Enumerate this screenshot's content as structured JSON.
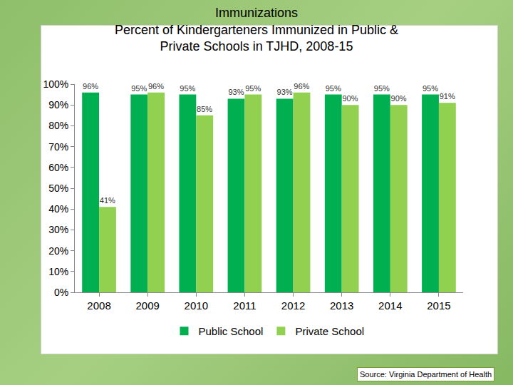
{
  "chart_data": {
    "type": "bar",
    "title": "Immunizations\nPercent of Kindergarteners Immunized in Public &\nPrivate Schools in TJHD, 2008-15",
    "categories": [
      "2008",
      "2009",
      "2010",
      "2011",
      "2012",
      "2013",
      "2014",
      "2015"
    ],
    "series": [
      {
        "name": "Public School",
        "color": "#00b050",
        "values": [
          96,
          95,
          95,
          93,
          93,
          95,
          95,
          95
        ],
        "value_labels": [
          "96%",
          "95%",
          "95%",
          "93%",
          "93%",
          "95%",
          "95%",
          "95%"
        ]
      },
      {
        "name": "Private School",
        "color": "#92d050",
        "values": [
          41,
          96,
          85,
          95,
          96,
          90,
          90,
          91
        ],
        "value_labels": [
          "41%",
          "96%",
          "85%",
          "95%",
          "96%",
          "90%",
          "90%",
          "91%"
        ]
      }
    ],
    "ylim": [
      0,
      100
    ],
    "yticks": [
      {
        "value": 0,
        "label": "0%"
      },
      {
        "value": 10,
        "label": "10%"
      },
      {
        "value": 20,
        "label": "20%"
      },
      {
        "value": 30,
        "label": "30%"
      },
      {
        "value": 40,
        "label": "40%"
      },
      {
        "value": 50,
        "label": "50%"
      },
      {
        "value": 60,
        "label": "60%"
      },
      {
        "value": 70,
        "label": "70%"
      },
      {
        "value": 80,
        "label": "80%"
      },
      {
        "value": 90,
        "label": "90%"
      },
      {
        "value": 100,
        "label": "100%"
      }
    ],
    "grid": false,
    "legend": "bottom",
    "data_labels": true,
    "annotations": [
      "Source: Virginia Department of Health"
    ]
  }
}
